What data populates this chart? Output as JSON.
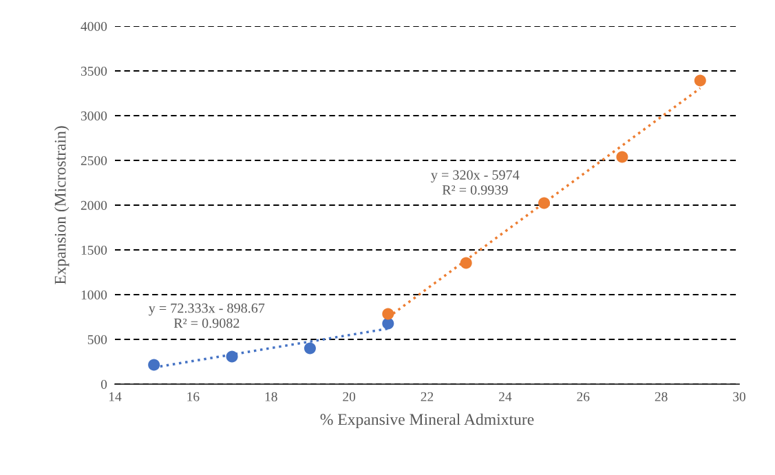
{
  "chart_data": {
    "type": "scatter",
    "xlabel": "% Expansive Mineral Admixture",
    "ylabel": "Expansion (Microstrain)",
    "xlim": [
      14,
      30
    ],
    "xticks": [
      14,
      16,
      18,
      20,
      22,
      24,
      26,
      28,
      30
    ],
    "ylim": [
      0,
      4000
    ],
    "yticks": [
      0,
      500,
      1000,
      1500,
      2000,
      2500,
      3000,
      3500,
      4000
    ],
    "grid": "y",
    "marker": "circle",
    "series": [
      {
        "color": "#4472c4",
        "x": [
          15,
          17,
          19,
          21
        ],
        "values": [
          215,
          308,
          400,
          677
        ]
      },
      {
        "color": "#ed7d31",
        "x": [
          21,
          23,
          25,
          27,
          29
        ],
        "values": [
          785,
          1354,
          2023,
          2538,
          3392
        ]
      },
      {
        "type": "line",
        "marker": "none",
        "line_style": "dotted",
        "color": "#4472c4",
        "x": [
          15,
          21
        ],
        "values": [
          186,
          620
        ]
      },
      {
        "type": "line",
        "marker": "none",
        "line_style": "dotted",
        "color": "#ed7d31",
        "x": [
          21,
          29
        ],
        "values": [
          746,
          3306
        ]
      }
    ],
    "annotations": [
      "y = 72.333x - 898.67\nR² = 0.9082",
      "y = 320x - 5974\nR² = 0.9939"
    ]
  }
}
